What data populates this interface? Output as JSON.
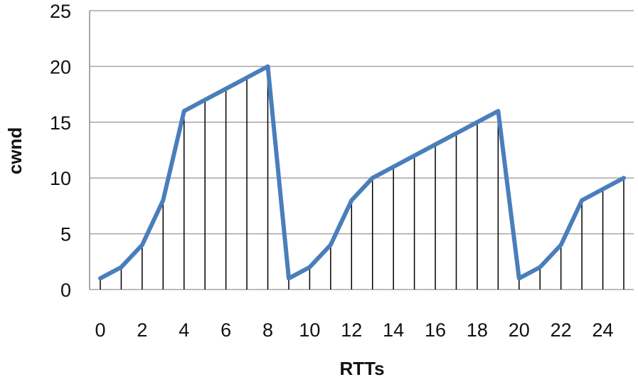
{
  "chart_data": {
    "type": "line",
    "title": "",
    "xlabel": "RTTs",
    "ylabel": "cwnd",
    "xlim": [
      0,
      25
    ],
    "ylim": [
      0,
      25
    ],
    "x_ticks": [
      0,
      2,
      4,
      6,
      8,
      10,
      12,
      14,
      16,
      18,
      20,
      22,
      24
    ],
    "y_ticks": [
      0,
      5,
      10,
      15,
      20,
      25
    ],
    "grid": "horizontal",
    "drop_lines": true,
    "series": [
      {
        "color": "#4a7ebb",
        "x": [
          0,
          1,
          2,
          3,
          4,
          5,
          6,
          7,
          8,
          9,
          10,
          11,
          12,
          13,
          14,
          15,
          16,
          17,
          18,
          19,
          20,
          21,
          22,
          23,
          24,
          25
        ],
        "values": [
          1,
          2,
          4,
          8,
          16,
          17,
          18,
          19,
          20,
          1,
          2,
          4,
          8,
          10,
          11,
          12,
          13,
          14,
          15,
          16,
          1,
          2,
          4,
          8,
          9,
          10
        ]
      }
    ]
  }
}
